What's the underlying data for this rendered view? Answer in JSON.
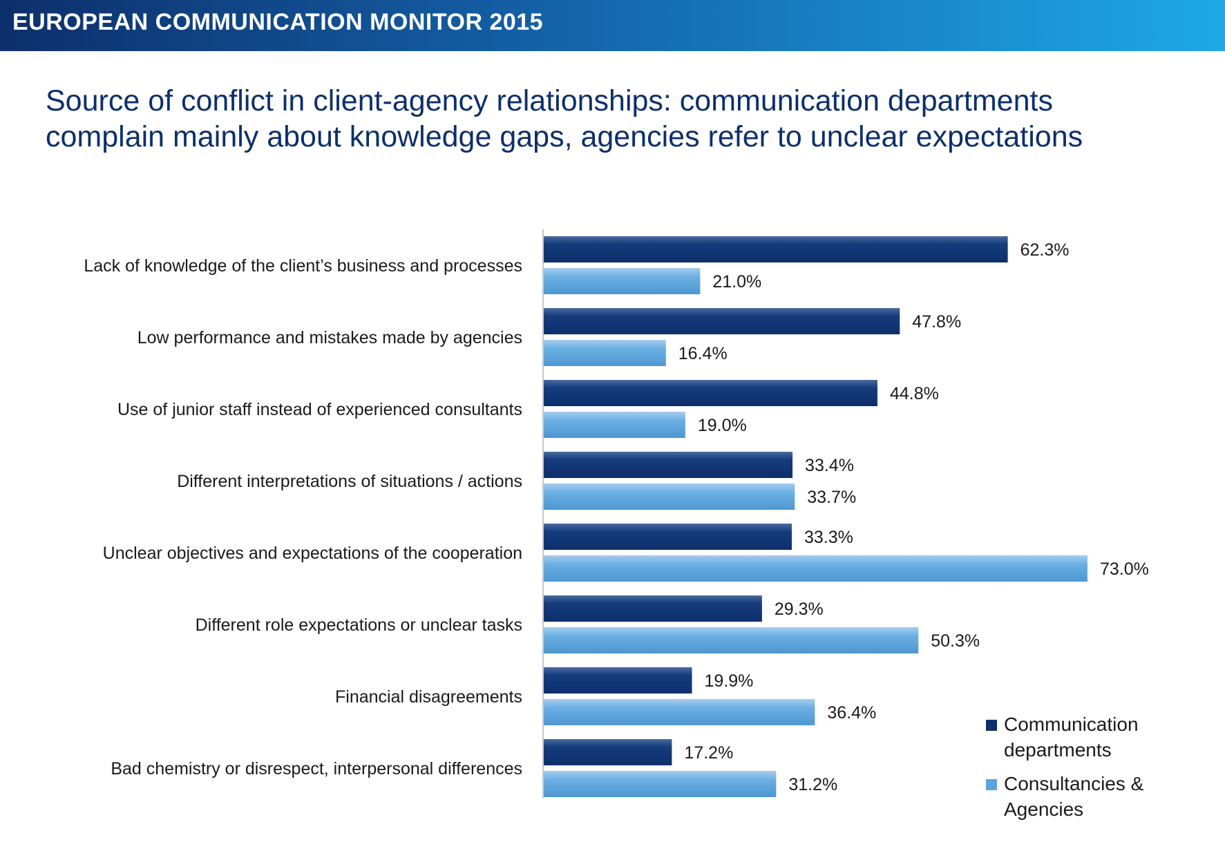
{
  "header": {
    "banner_text": "EUROPEAN COMMUNICATION MONITOR 2015"
  },
  "chart_data": {
    "type": "bar",
    "orientation": "horizontal",
    "title_lines": [
      "Source of conflict in client-agency relationships: communication departments",
      "complain mainly about knowledge gaps, agencies refer to unclear expectations"
    ],
    "categories": [
      "Lack of knowledge of the client’s business and processes",
      "Low performance and mistakes made by agencies",
      "Use of junior staff instead of experienced consultants",
      "Different interpretations of situations / actions",
      "Unclear objectives and expectations of the cooperation",
      "Different role expectations or unclear tasks",
      "Financial disagreements",
      "Bad chemistry or disrespect, interpersonal differences"
    ],
    "series": [
      {
        "name": "Communication departments",
        "color": "#0d2f6b",
        "values": [
          62.3,
          47.8,
          44.8,
          33.4,
          33.3,
          29.3,
          19.9,
          17.2
        ]
      },
      {
        "name": "Consultancies & Agencies",
        "color": "#5aa3dc",
        "values": [
          21.0,
          16.4,
          19.0,
          33.7,
          73.0,
          50.3,
          36.4,
          31.2
        ]
      }
    ],
    "value_suffix": "%",
    "xlim": [
      0,
      100
    ],
    "legend_position": "bottom-right",
    "grid": false
  },
  "legend": {
    "items": [
      {
        "label_line1": "Communication",
        "label_line2": "departments",
        "color": "#0d2f6b"
      },
      {
        "label_line1": "Consultancies &",
        "label_line2": "Agencies",
        "color": "#5aa3dc"
      }
    ]
  }
}
